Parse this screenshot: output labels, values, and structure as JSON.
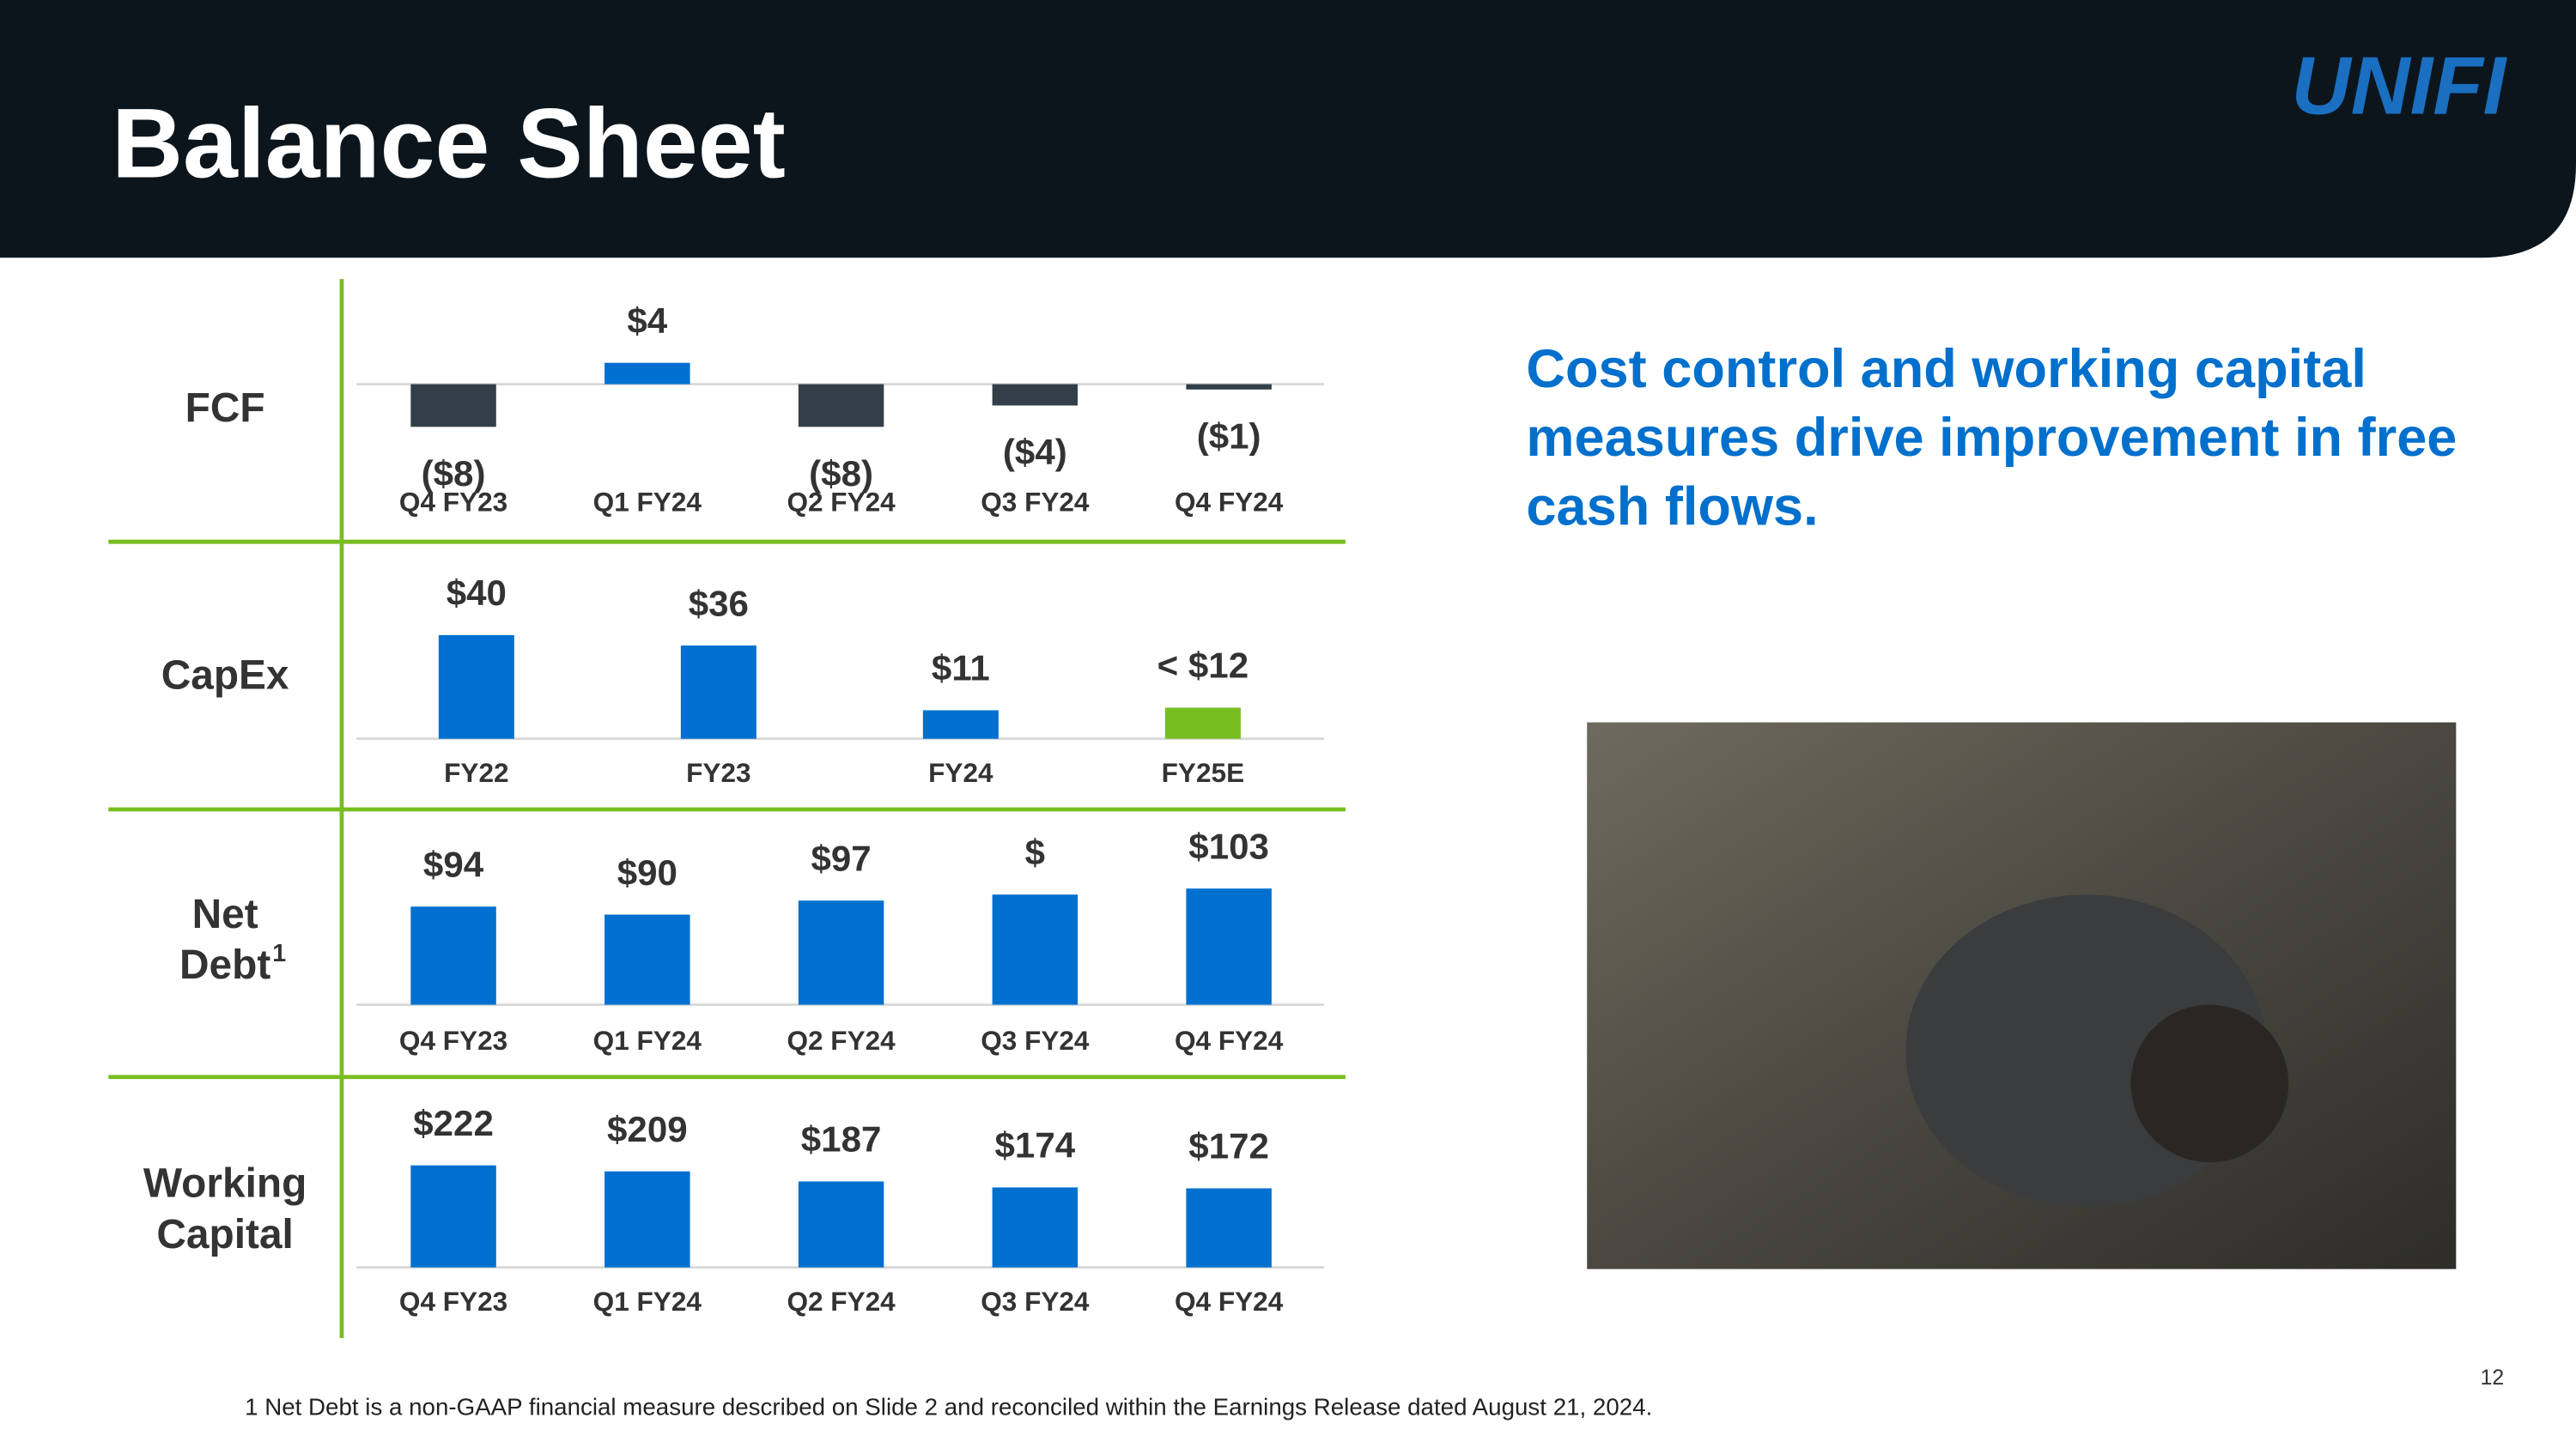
{
  "title": "Balance Sheet",
  "logo": "UNIFI",
  "callout": [
    "Cost control and working capital",
    "measures drive improvement in free",
    "cash flows."
  ],
  "footnote": "1 Net Debt is a non-GAAP financial measure described on Slide 2 and reconciled within the Earnings Release dated August 21, 2024.",
  "page_number": "12",
  "chart_data": [
    {
      "type": "bar",
      "title": [
        "FCF"
      ],
      "categories": [
        "Q4 FY23",
        "Q1 FY24",
        "Q2 FY24",
        "Q3 FY24",
        "Q4 FY24"
      ],
      "values": [
        -8,
        4,
        -8,
        -4,
        -1
      ],
      "value_labels": [
        "($8)",
        "$4",
        "($8)",
        "($4)",
        "($1)"
      ],
      "colors": [
        "#333f48",
        "#0070d0",
        "#333f48",
        "#333f48",
        "#333f48"
      ],
      "ylim": [
        -10,
        6
      ]
    },
    {
      "type": "bar",
      "title": [
        "CapEx"
      ],
      "categories": [
        "FY22",
        "FY23",
        "FY24",
        "FY25E"
      ],
      "values": [
        40,
        36,
        11,
        12
      ],
      "value_labels": [
        "$40",
        "$36",
        "$11",
        "< $12"
      ],
      "colors": [
        "#0070d0",
        "#0070d0",
        "#0070d0",
        "#78be20"
      ],
      "ylim": [
        0,
        45
      ]
    },
    {
      "type": "bar",
      "title": [
        "Net",
        "Debt"
      ],
      "title_note": "1",
      "categories": [
        "Q4 FY23",
        "Q1 FY24",
        "Q2 FY24",
        "Q3 FY24",
        "Q4 FY24"
      ],
      "values": [
        94,
        90,
        97,
        100,
        103
      ],
      "value_labels": [
        "$94",
        "$90",
        "$97",
        "$",
        "$103"
      ],
      "colors": [
        "#0070d0",
        "#0070d0",
        "#0070d0",
        "#0070d0",
        "#0070d0"
      ],
      "ylim": [
        45,
        105
      ]
    },
    {
      "type": "bar",
      "title": [
        "Working",
        "Capital"
      ],
      "categories": [
        "Q4 FY23",
        "Q1 FY24",
        "Q2 FY24",
        "Q3 FY24",
        "Q4 FY24"
      ],
      "values": [
        222,
        209,
        187,
        174,
        172
      ],
      "value_labels": [
        "$222",
        "$209",
        "$187",
        "$174",
        "$172"
      ],
      "colors": [
        "#0070d0",
        "#0070d0",
        "#0070d0",
        "#0070d0",
        "#0070d0"
      ],
      "ylim": [
        0,
        250
      ]
    }
  ]
}
